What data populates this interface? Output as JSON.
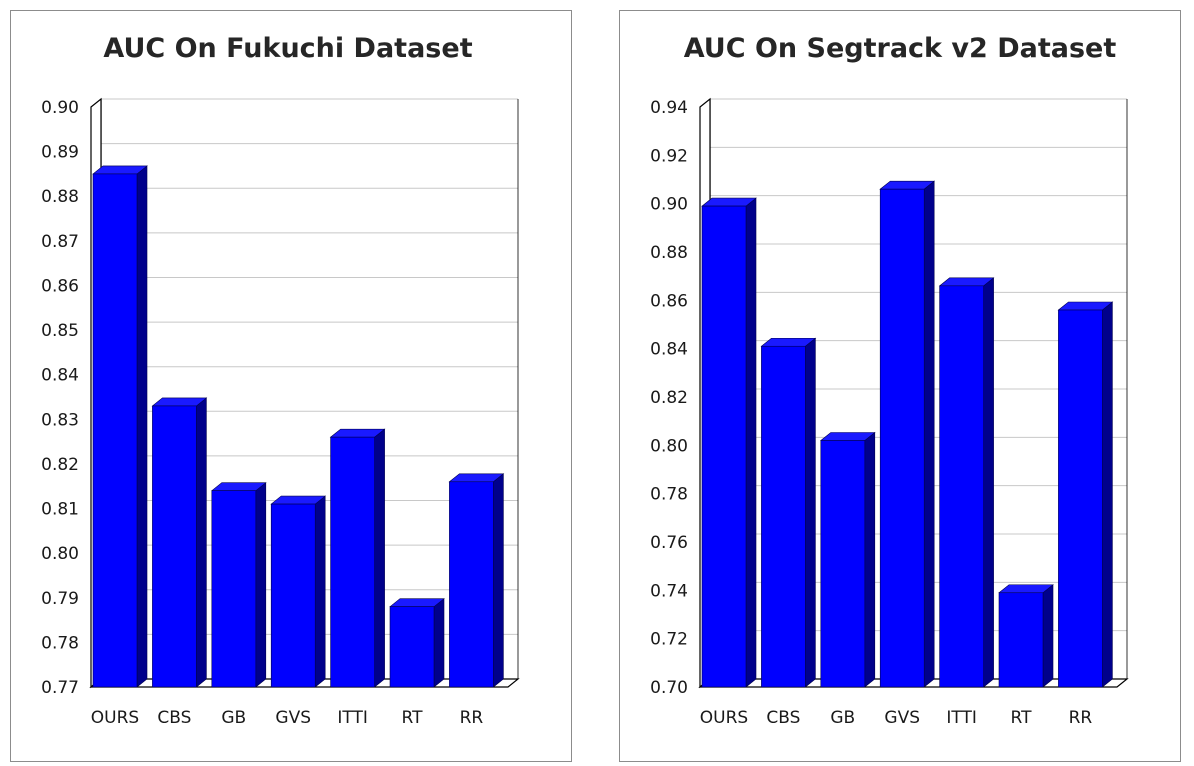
{
  "chart_data": [
    {
      "type": "bar",
      "title": "AUC On Fukuchi Dataset",
      "categories": [
        "OURS",
        "CBS",
        "GB",
        "GVS",
        "ITTI",
        "RT",
        "RR"
      ],
      "values": [
        0.885,
        0.833,
        0.814,
        0.811,
        0.826,
        0.788,
        0.816
      ],
      "ylim": [
        0.77,
        0.9
      ],
      "yticks": [
        "0.77",
        "0.78",
        "0.79",
        "0.80",
        "0.81",
        "0.82",
        "0.83",
        "0.84",
        "0.85",
        "0.86",
        "0.87",
        "0.88",
        "0.89",
        "0.90"
      ],
      "xlabel": "",
      "ylabel": "",
      "grid": true,
      "bar_color": "#0000ff",
      "bar_side_color": "#00008b",
      "bar_top_color": "#1a1aff"
    },
    {
      "type": "bar",
      "title": "AUC On Segtrack v2 Dataset",
      "categories": [
        "OURS",
        "CBS",
        "GB",
        "GVS",
        "ITTI",
        "RT",
        "RR"
      ],
      "values": [
        0.899,
        0.841,
        0.802,
        0.906,
        0.866,
        0.739,
        0.856
      ],
      "ylim": [
        0.7,
        0.94
      ],
      "yticks": [
        "0.70",
        "0.72",
        "0.74",
        "0.76",
        "0.78",
        "0.80",
        "0.82",
        "0.84",
        "0.86",
        "0.88",
        "0.90",
        "0.92",
        "0.94"
      ],
      "xlabel": "",
      "ylabel": "",
      "grid": true,
      "bar_color": "#0000ff",
      "bar_side_color": "#00008b",
      "bar_top_color": "#1a1aff"
    }
  ]
}
